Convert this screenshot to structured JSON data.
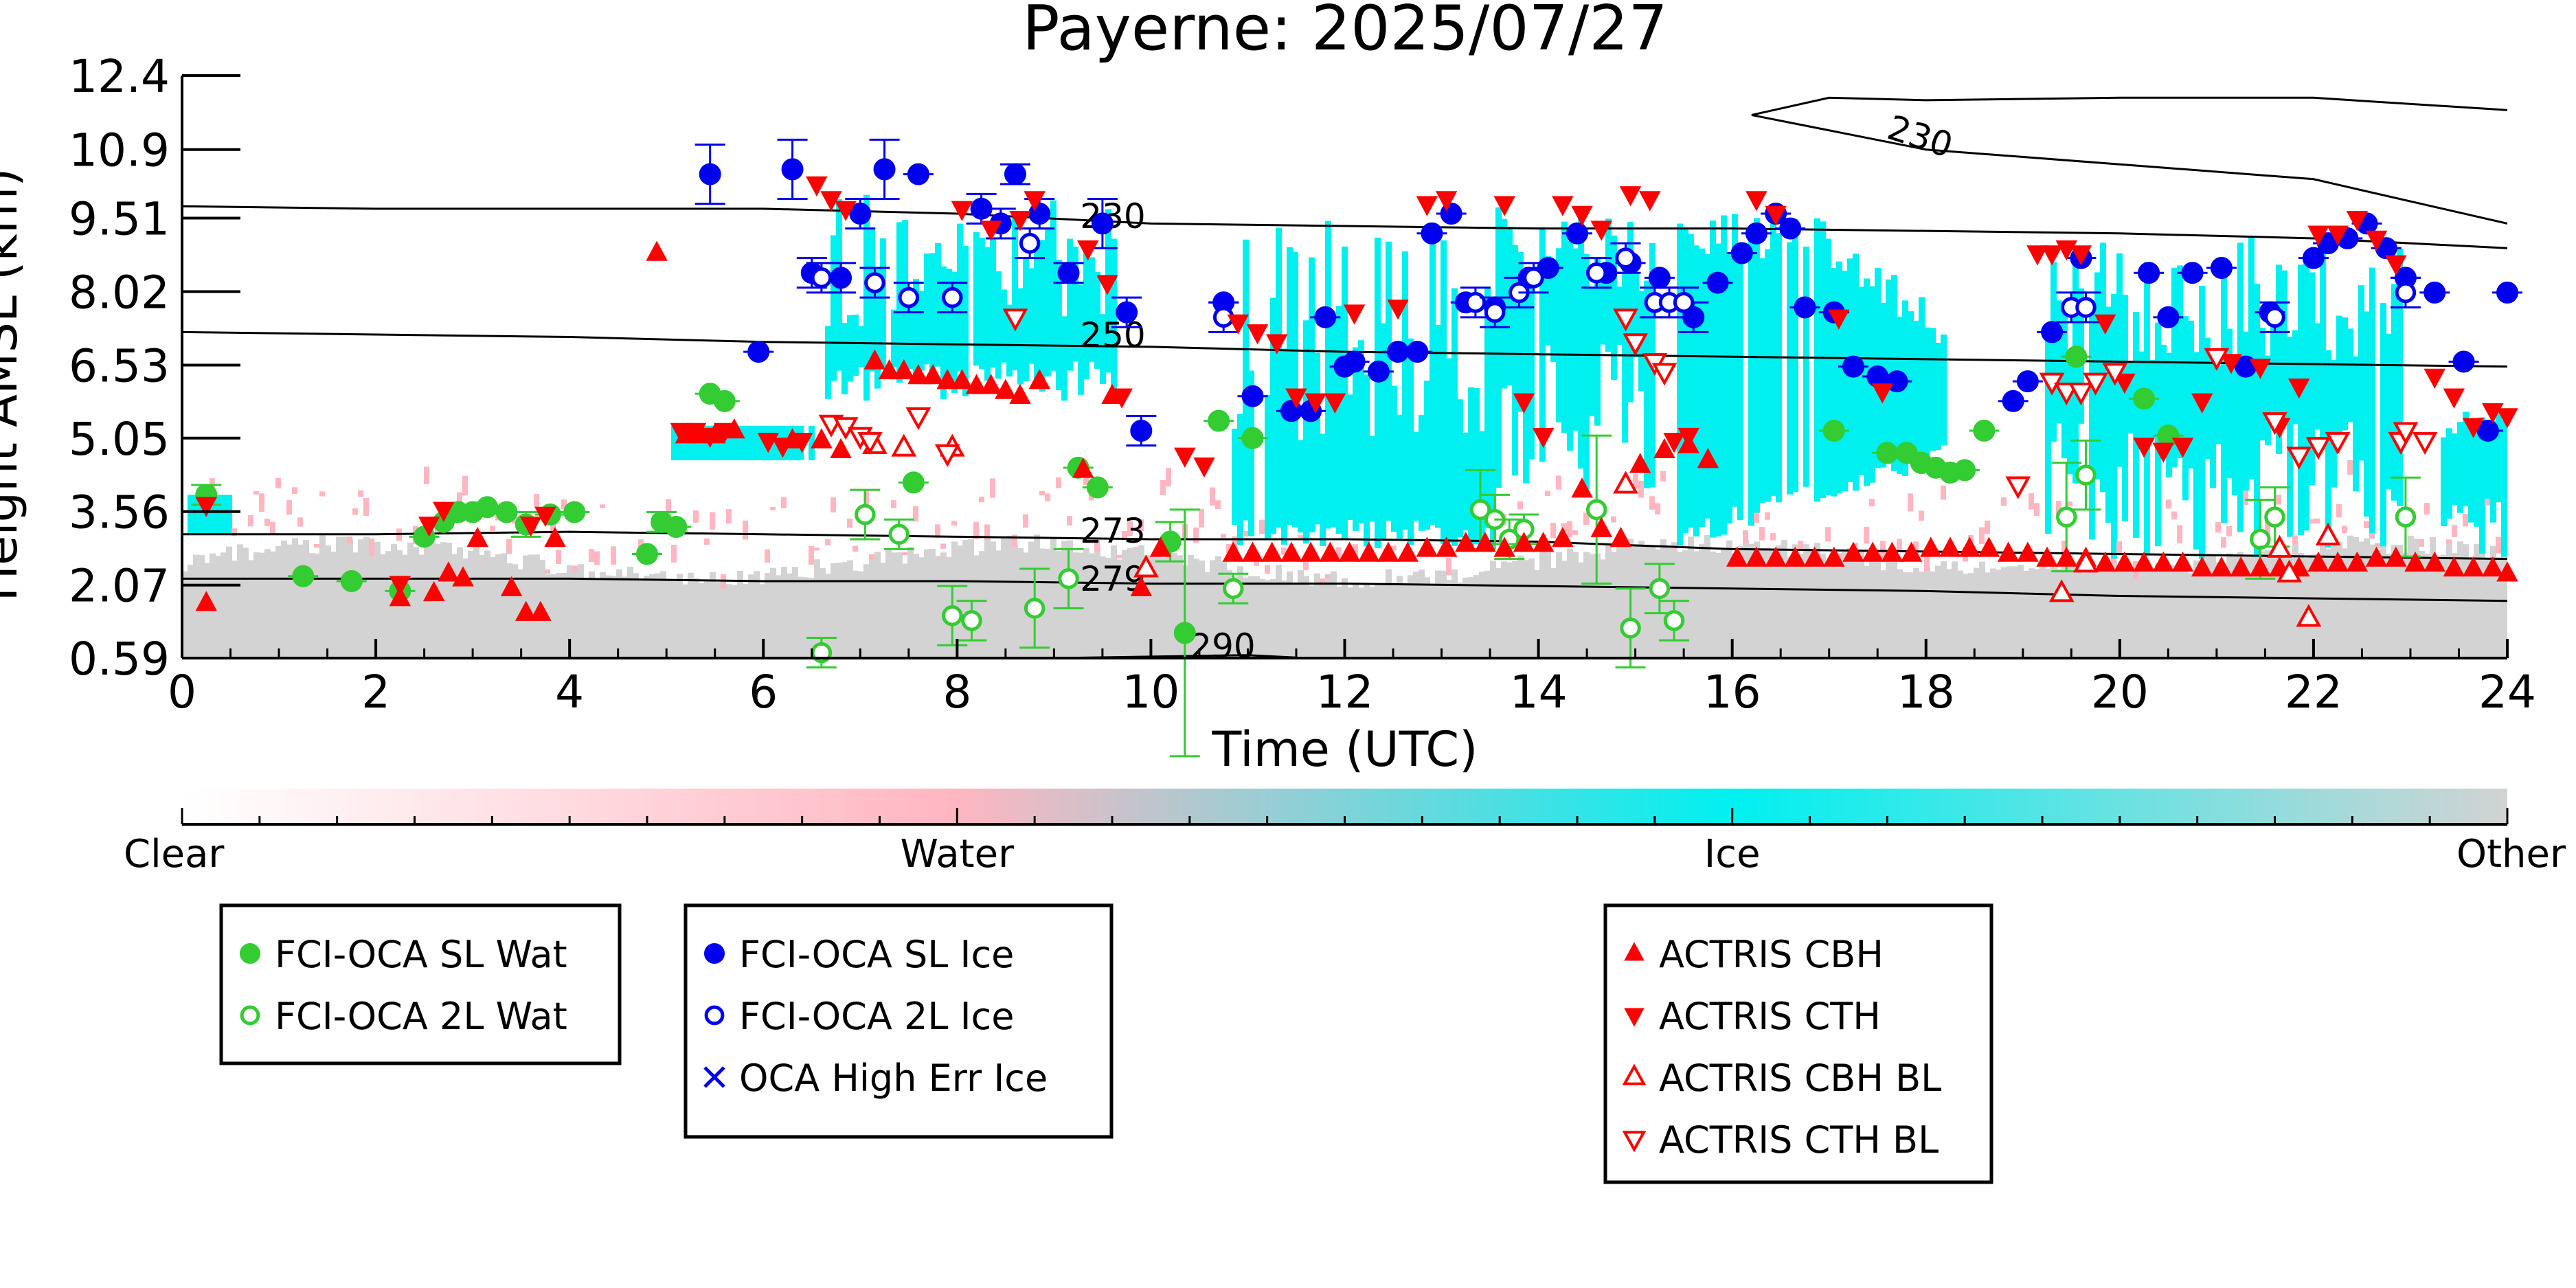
{
  "chart_data": {
    "type": "scatter",
    "title": "Payerne: 2025/07/27",
    "xlabel": "Time (UTC)",
    "ylabel": "Height AMSL (km)",
    "xlim": [
      0,
      24
    ],
    "ylim": [
      0.59,
      12.4
    ],
    "x_ticks": [
      "0",
      "2",
      "4",
      "6",
      "8",
      "10",
      "12",
      "14",
      "16",
      "18",
      "20",
      "22",
      "24"
    ],
    "y_ticks": [
      "0.59",
      "2.07",
      "3.56",
      "5.05",
      "6.53",
      "8.02",
      "9.51",
      "10.9",
      "12.4"
    ],
    "grid": false,
    "colorbar": {
      "labels": [
        "Clear",
        "Water",
        "Ice",
        "Other"
      ],
      "colors": [
        "#ffffff",
        "#ffb6c1",
        "#00f0f0",
        "#d3d3d3"
      ]
    },
    "contours": [
      {
        "label": "230",
        "x": [
          16.2,
          17,
          18,
          20,
          22,
          24
        ],
        "y": [
          11.6,
          11.95,
          11.9,
          11.95,
          11.95,
          11.7
        ]
      },
      {
        "label": "230",
        "x": [
          16.2,
          18,
          20,
          22,
          24
        ],
        "y": [
          11.6,
          10.9,
          10.6,
          10.3,
          9.4
        ]
      },
      {
        "label": "230",
        "x": [
          0,
          2,
          4,
          6,
          8,
          10,
          12,
          14,
          16,
          18,
          20,
          22,
          24
        ],
        "y": [
          9.75,
          9.7,
          9.7,
          9.7,
          9.6,
          9.4,
          9.35,
          9.3,
          9.3,
          9.25,
          9.2,
          9.1,
          8.9
        ]
      },
      {
        "label": "250",
        "x": [
          0,
          2,
          4,
          6,
          8,
          10,
          12,
          14,
          16,
          18,
          20,
          22,
          24
        ],
        "y": [
          7.2,
          7.15,
          7.1,
          7.0,
          6.95,
          6.9,
          6.8,
          6.75,
          6.7,
          6.65,
          6.6,
          6.55,
          6.5
        ]
      },
      {
        "label": "273",
        "x": [
          0,
          2,
          4,
          6,
          8,
          10,
          12,
          14,
          16,
          18,
          20,
          22,
          24
        ],
        "y": [
          3.1,
          3.1,
          3.15,
          3.1,
          3.05,
          3.0,
          3.0,
          2.95,
          2.8,
          2.75,
          2.7,
          2.65,
          2.6
        ]
      },
      {
        "label": "279",
        "x": [
          0,
          2,
          4,
          6,
          8,
          10,
          12,
          14,
          16,
          18,
          20,
          22,
          24
        ],
        "y": [
          2.2,
          2.2,
          2.2,
          2.15,
          2.15,
          2.1,
          2.1,
          2.05,
          2.0,
          1.95,
          1.85,
          1.8,
          1.75
        ]
      },
      {
        "label": "290",
        "x": [
          9,
          10,
          11,
          11.5
        ],
        "y": [
          0.59,
          0.62,
          0.65,
          0.6
        ]
      }
    ],
    "series": [
      {
        "name": "FCI-OCA SL Wat",
        "color": "#33cc33",
        "marker": "filled-circle",
        "x": [
          0.25,
          1.25,
          1.75,
          2.25,
          2.5,
          2.7,
          2.85,
          3.0,
          3.15,
          3.35,
          3.55,
          3.8,
          4.05,
          4.8,
          4.95,
          5.1,
          5.45,
          5.6,
          7.55,
          9.25,
          9.45,
          10.2,
          10.35,
          10.7,
          11.05,
          17.05,
          17.6,
          17.8,
          17.95,
          18.1,
          18.25,
          18.4,
          18.6,
          19.55,
          20.25,
          20.5
        ],
        "y": [
          3.9,
          2.25,
          2.15,
          1.95,
          3.05,
          3.35,
          3.55,
          3.55,
          3.65,
          3.55,
          3.3,
          3.5,
          3.55,
          2.7,
          3.35,
          3.25,
          5.95,
          5.8,
          4.15,
          4.45,
          4.05,
          2.95,
          1.1,
          5.4,
          5.05,
          5.2,
          4.75,
          4.75,
          4.55,
          4.45,
          4.35,
          4.4,
          5.2,
          6.7,
          5.85,
          5.1
        ],
        "yerr": [
          0.2,
          0,
          0,
          0,
          0,
          0,
          0,
          0,
          0,
          0,
          0.25,
          0,
          0,
          0,
          0.2,
          0,
          0,
          0,
          0,
          0,
          0,
          0.4,
          2.5,
          0,
          0,
          0,
          0,
          0,
          0,
          0,
          0,
          0,
          0,
          0,
          0,
          0
        ]
      },
      {
        "name": "FCI-OCA 2L Wat",
        "color": "#33cc33",
        "marker": "open-circle",
        "x": [
          6.6,
          7.05,
          7.4,
          7.95,
          8.15,
          8.8,
          9.15,
          10.85,
          13.4,
          13.55,
          13.7,
          13.85,
          14.6,
          14.95,
          15.25,
          15.4,
          19.45,
          19.65,
          21.45,
          21.6,
          22.95
        ],
        "y": [
          0.7,
          3.5,
          3.1,
          1.45,
          1.35,
          1.6,
          2.2,
          2.0,
          3.6,
          3.4,
          3.0,
          3.2,
          3.6,
          1.2,
          2.0,
          1.35,
          3.45,
          4.3,
          3.0,
          3.45,
          3.45
        ],
        "yerr": [
          0.3,
          0.5,
          0.3,
          0.6,
          0.4,
          0.8,
          0.6,
          0.3,
          0.8,
          0.5,
          0.4,
          0.3,
          1.5,
          0.8,
          0.5,
          0.4,
          1.1,
          0.7,
          0.8,
          0.6,
          0.8
        ]
      },
      {
        "name": "FCI-OCA SL Ice",
        "color": "#0000ee",
        "marker": "filled-circle",
        "x": [
          5.45,
          5.95,
          6.3,
          6.5,
          6.8,
          7.0,
          7.25,
          7.6,
          8.25,
          8.45,
          8.6,
          8.85,
          9.15,
          9.5,
          9.75,
          9.9,
          10.75,
          11.05,
          11.45,
          11.65,
          11.8,
          12.0,
          12.1,
          12.35,
          12.55,
          12.75,
          12.9,
          13.1,
          13.25,
          13.55,
          13.9,
          14.1,
          14.4,
          14.7,
          14.95,
          15.25,
          15.6,
          15.85,
          16.1,
          16.25,
          16.45,
          16.6,
          16.75,
          17.05,
          17.25,
          17.5,
          17.7,
          18.9,
          19.05,
          19.3,
          19.6,
          20.3,
          20.5,
          20.75,
          21.05,
          21.3,
          21.55,
          22.0,
          22.15,
          22.35,
          22.55,
          22.75,
          22.95,
          23.25,
          23.55,
          23.8,
          24.0
        ],
        "y": [
          10.4,
          6.8,
          10.5,
          8.4,
          8.3,
          9.6,
          10.5,
          10.4,
          9.7,
          9.4,
          10.4,
          9.6,
          8.4,
          9.4,
          7.6,
          5.2,
          7.8,
          5.9,
          5.6,
          5.6,
          7.5,
          6.5,
          6.6,
          6.4,
          6.8,
          6.8,
          9.2,
          9.6,
          7.8,
          7.7,
          8.3,
          8.5,
          9.2,
          8.4,
          8.6,
          8.3,
          7.5,
          8.2,
          8.8,
          9.2,
          9.6,
          9.3,
          7.7,
          7.6,
          6.5,
          6.3,
          6.2,
          5.8,
          6.2,
          7.2,
          8.7,
          8.4,
          7.5,
          8.4,
          8.5,
          6.5,
          7.6,
          8.7,
          9.0,
          9.1,
          9.4,
          8.9,
          8.3,
          8.0,
          6.6,
          5.2,
          8.0
        ],
        "yerr": [
          0.6,
          0,
          0.6,
          0.3,
          0.3,
          0.3,
          0.6,
          0,
          0.3,
          0.3,
          0.2,
          0.3,
          0.2,
          0.5,
          0.3,
          0.3,
          0,
          0,
          0,
          0,
          0,
          0,
          0,
          0,
          0,
          0,
          0,
          0,
          0,
          0,
          0,
          0,
          0,
          0,
          0,
          0,
          0.3,
          0,
          0,
          0,
          0,
          0,
          0,
          0,
          0,
          0,
          0,
          0,
          0,
          0,
          0,
          0,
          0,
          0,
          0,
          0,
          0,
          0,
          0,
          0,
          0,
          0,
          0,
          0,
          0,
          0,
          0
        ]
      },
      {
        "name": "FCI-OCA 2L Ice",
        "color": "#0000ee",
        "marker": "open-circle",
        "x": [
          6.6,
          7.15,
          7.5,
          7.95,
          8.75,
          10.75,
          13.35,
          13.55,
          13.8,
          13.95,
          14.6,
          14.9,
          15.2,
          15.35,
          15.5,
          19.5,
          19.65,
          21.6,
          22.95
        ],
        "y": [
          8.3,
          8.2,
          7.9,
          7.9,
          9.0,
          7.5,
          7.8,
          7.6,
          8.0,
          8.3,
          8.4,
          8.7,
          7.8,
          7.8,
          7.8,
          7.7,
          7.7,
          7.5,
          8.0
        ],
        "yerr": [
          0.3,
          0.3,
          0.3,
          0.3,
          0.3,
          0.3,
          0.3,
          0.3,
          0.3,
          0.3,
          0.3,
          0.3,
          0.3,
          0.3,
          0.3,
          0.3,
          0.3,
          0.3,
          0.3
        ]
      },
      {
        "name": "OCA High Err Ice",
        "color": "#0000ee",
        "marker": "x",
        "x": [],
        "y": []
      },
      {
        "name": "ACTRIS CBH",
        "color": "#ff0000",
        "marker": "triangle-up",
        "x": [
          0.25,
          2.25,
          2.6,
          2.75,
          2.9,
          3.05,
          3.4,
          3.55,
          3.7,
          3.85,
          4.9,
          5.2,
          5.35,
          5.5,
          5.7,
          6.3,
          6.6,
          6.8,
          7.15,
          7.3,
          7.45,
          7.6,
          7.75,
          7.9,
          8.05,
          8.2,
          8.35,
          8.5,
          8.65,
          8.85,
          9.3,
          9.6,
          9.9,
          10.1,
          10.85,
          11.05,
          11.25,
          11.45,
          11.65,
          11.85,
          12.05,
          12.25,
          12.45,
          12.65,
          12.85,
          13.05,
          13.25,
          13.45,
          13.65,
          13.85,
          14.05,
          14.25,
          14.45,
          14.65,
          14.85,
          15.05,
          15.3,
          15.55,
          15.75,
          16.05,
          16.25,
          16.45,
          16.65,
          16.85,
          17.05,
          17.25,
          17.45,
          17.65,
          17.85,
          18.05,
          18.25,
          18.45,
          18.65,
          18.85,
          19.05,
          19.25,
          19.45,
          19.65,
          19.85,
          20.05,
          20.25,
          20.45,
          20.65,
          20.85,
          21.05,
          21.25,
          21.45,
          21.65,
          21.85,
          22.05,
          22.25,
          22.45,
          22.65,
          22.85,
          23.05,
          23.25,
          23.45,
          23.65,
          23.85,
          24.0
        ],
        "y": [
          1.7,
          1.8,
          1.9,
          2.3,
          2.2,
          3.0,
          2.0,
          1.5,
          1.5,
          3.0,
          8.8,
          5.1,
          5.1,
          5.1,
          5.2,
          5.0,
          5.0,
          4.8,
          6.6,
          6.4,
          6.4,
          6.3,
          6.3,
          6.2,
          6.2,
          6.1,
          6.1,
          6.0,
          5.9,
          6.2,
          4.4,
          5.9,
          2.0,
          2.8,
          2.7,
          2.7,
          2.7,
          2.7,
          2.7,
          2.7,
          2.7,
          2.7,
          2.7,
          2.7,
          2.8,
          2.8,
          2.9,
          2.9,
          2.8,
          2.9,
          2.9,
          3.0,
          4.0,
          3.2,
          3.0,
          4.5,
          4.8,
          4.9,
          4.6,
          2.6,
          2.6,
          2.6,
          2.6,
          2.6,
          2.6,
          2.7,
          2.7,
          2.7,
          2.7,
          2.8,
          2.8,
          2.8,
          2.8,
          2.7,
          2.7,
          2.6,
          2.6,
          2.6,
          2.5,
          2.5,
          2.5,
          2.5,
          2.5,
          2.4,
          2.4,
          2.4,
          2.4,
          2.4,
          2.4,
          2.5,
          2.5,
          2.5,
          2.6,
          2.6,
          2.5,
          2.5,
          2.4,
          2.4,
          2.4,
          2.3
        ]
      },
      {
        "name": "ACTRIS CTH",
        "color": "#ff0000",
        "marker": "triangle-down",
        "x": [
          0.25,
          2.25,
          2.55,
          2.7,
          3.6,
          3.75,
          5.15,
          5.3,
          5.45,
          5.6,
          6.05,
          6.2,
          6.4,
          6.55,
          6.7,
          6.85,
          8.05,
          8.35,
          8.65,
          8.8,
          9.35,
          9.55,
          9.7,
          10.35,
          10.55,
          10.9,
          11.1,
          11.3,
          11.5,
          11.7,
          11.9,
          12.1,
          12.55,
          12.85,
          13.05,
          13.65,
          13.85,
          14.05,
          14.25,
          14.45,
          14.65,
          14.95,
          15.15,
          15.4,
          15.55,
          16.25,
          16.45,
          17.1,
          17.55,
          19.15,
          19.3,
          19.45,
          19.6,
          19.85,
          20.05,
          20.25,
          20.45,
          20.65,
          20.85,
          21.15,
          21.45,
          21.65,
          21.85,
          22.05,
          22.25,
          22.45,
          22.65,
          22.85,
          23.25,
          23.45,
          23.65,
          23.85,
          24.0
        ],
        "y": [
          3.7,
          2.1,
          3.3,
          3.6,
          3.3,
          3.5,
          5.2,
          5.2,
          5.1,
          5.2,
          5.0,
          4.9,
          5.0,
          10.2,
          9.9,
          9.7,
          9.7,
          9.3,
          9.5,
          9.9,
          8.9,
          8.2,
          5.9,
          4.7,
          4.5,
          7.4,
          7.2,
          7.0,
          5.9,
          5.8,
          5.8,
          7.6,
          7.7,
          9.8,
          9.9,
          9.8,
          5.8,
          5.1,
          9.8,
          9.6,
          9.3,
          10.0,
          9.9,
          5.0,
          5.1,
          9.9,
          9.6,
          7.5,
          6.0,
          8.8,
          8.8,
          8.9,
          8.8,
          7.4,
          6.2,
          4.9,
          4.8,
          4.9,
          5.8,
          6.6,
          6.5,
          5.3,
          6.1,
          9.2,
          9.2,
          9.5,
          9.1,
          8.6,
          6.3,
          5.9,
          5.3,
          5.6,
          5.5
        ]
      },
      {
        "name": "ACTRIS CBH BL",
        "color": "#ff0000",
        "marker": "open-triangle-up",
        "x": [
          7.15,
          7.45,
          7.95,
          9.95,
          14.9,
          19.4,
          19.65,
          21.65,
          21.75,
          21.95,
          22.15
        ],
        "y": [
          4.9,
          4.85,
          4.85,
          2.4,
          4.1,
          1.9,
          2.5,
          2.8,
          2.3,
          1.4,
          3.05
        ]
      },
      {
        "name": "ACTRIS CTH BL",
        "color": "#ff0000",
        "marker": "open-triangle-down",
        "x": [
          6.7,
          6.85,
          7.0,
          7.1,
          7.6,
          7.9,
          8.6,
          14.9,
          15.0,
          15.2,
          15.3,
          18.95,
          19.3,
          19.45,
          19.6,
          19.75,
          19.95,
          21.0,
          21.6,
          21.85,
          22.05,
          22.25,
          22.9,
          22.95,
          23.15
        ],
        "y": [
          5.35,
          5.3,
          5.1,
          5.0,
          5.5,
          4.75,
          7.5,
          7.5,
          7.0,
          6.6,
          6.4,
          4.1,
          6.2,
          6.0,
          6.0,
          6.2,
          6.4,
          6.7,
          5.4,
          4.7,
          4.9,
          5.0,
          5.0,
          5.2,
          5.0
        ]
      }
    ]
  }
}
